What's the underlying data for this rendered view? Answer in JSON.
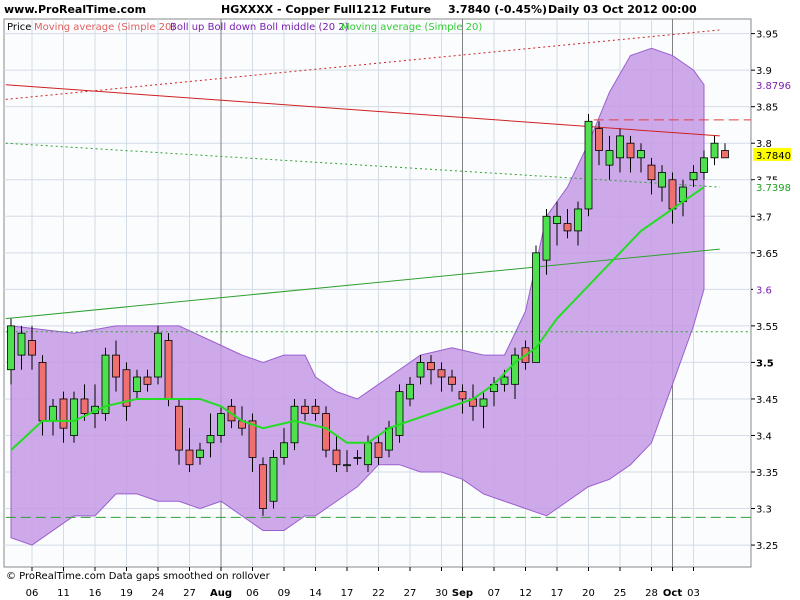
{
  "header": {
    "site": "www.ProRealTime.com",
    "instrument": "HGXXXX - Copper Full1212 Future",
    "quote": "3.7840 (-0.45%)",
    "period": "Daily  03 Oct 2012 00:00"
  },
  "legend": [
    {
      "text": "Price",
      "color": "#000000"
    },
    {
      "text": "Moving average (Simple 20)",
      "color": "#e06060"
    },
    {
      "text": "Boll up Boll down Boll middle (20 2)",
      "color": "#7a1fb0"
    },
    {
      "text": "Moving average (Simple 20)",
      "color": "#33cc33"
    }
  ],
  "footer": "© ProRealTime.com  Data gaps smoothed on rollover",
  "chart_data": {
    "type": "candlestick",
    "ylim": [
      3.22,
      3.97
    ],
    "y_ticks": [
      "3.95",
      "3.9",
      "3.85",
      "3.8",
      "3.75",
      "3.7",
      "3.65",
      "3.6",
      "3.55",
      "3.5",
      "3.45",
      "3.4",
      "3.35",
      "3.3",
      "3.25"
    ],
    "bold_tick": "3.5",
    "price_labels": [
      {
        "value": "3.8796",
        "color": "#7a1fb0",
        "bg": "#ffffff",
        "y": 3.8796
      },
      {
        "value": "3.7840",
        "color": "#000000",
        "bg": "#ffff00",
        "y": 3.784
      },
      {
        "value": "3.7398",
        "color": "#20a020",
        "bg": "#ffffff",
        "y": 3.7398
      },
      {
        "value": "3.6",
        "color": "#7a1fb0",
        "bg": "#ffffff",
        "y": 3.6
      }
    ],
    "x_labels": [
      {
        "label": "06",
        "i": 2,
        "bold": false
      },
      {
        "label": "11",
        "i": 5,
        "bold": false
      },
      {
        "label": "16",
        "i": 8,
        "bold": false
      },
      {
        "label": "19",
        "i": 11,
        "bold": false
      },
      {
        "label": "24",
        "i": 14,
        "bold": false
      },
      {
        "label": "27",
        "i": 17,
        "bold": false
      },
      {
        "label": "Aug",
        "i": 20,
        "bold": true
      },
      {
        "label": "06",
        "i": 23,
        "bold": false
      },
      {
        "label": "09",
        "i": 26,
        "bold": false
      },
      {
        "label": "14",
        "i": 29,
        "bold": false
      },
      {
        "label": "17",
        "i": 32,
        "bold": false
      },
      {
        "label": "22",
        "i": 35,
        "bold": false
      },
      {
        "label": "27",
        "i": 38,
        "bold": false
      },
      {
        "label": "30",
        "i": 41,
        "bold": false
      },
      {
        "label": "Sep",
        "i": 43,
        "bold": true
      },
      {
        "label": "07",
        "i": 46,
        "bold": false
      },
      {
        "label": "12",
        "i": 49,
        "bold": false
      },
      {
        "label": "17",
        "i": 52,
        "bold": false
      },
      {
        "label": "20",
        "i": 55,
        "bold": false
      },
      {
        "label": "25",
        "i": 58,
        "bold": false
      },
      {
        "label": "28",
        "i": 61,
        "bold": false
      },
      {
        "label": "Oct",
        "i": 63,
        "bold": true
      },
      {
        "label": "03",
        "i": 65,
        "bold": false
      }
    ],
    "candles": [
      {
        "o": 3.49,
        "h": 3.56,
        "l": 3.47,
        "c": 3.55
      },
      {
        "o": 3.51,
        "h": 3.55,
        "l": 3.49,
        "c": 3.54
      },
      {
        "o": 3.53,
        "h": 3.55,
        "l": 3.49,
        "c": 3.51
      },
      {
        "o": 3.5,
        "h": 3.51,
        "l": 3.4,
        "c": 3.42
      },
      {
        "o": 3.42,
        "h": 3.45,
        "l": 3.4,
        "c": 3.44
      },
      {
        "o": 3.45,
        "h": 3.46,
        "l": 3.39,
        "c": 3.41
      },
      {
        "o": 3.4,
        "h": 3.46,
        "l": 3.39,
        "c": 3.45
      },
      {
        "o": 3.45,
        "h": 3.47,
        "l": 3.42,
        "c": 3.43
      },
      {
        "o": 3.43,
        "h": 3.47,
        "l": 3.41,
        "c": 3.44
      },
      {
        "o": 3.43,
        "h": 3.52,
        "l": 3.42,
        "c": 3.51
      },
      {
        "o": 3.51,
        "h": 3.53,
        "l": 3.46,
        "c": 3.48
      },
      {
        "o": 3.49,
        "h": 3.5,
        "l": 3.42,
        "c": 3.44
      },
      {
        "o": 3.46,
        "h": 3.49,
        "l": 3.45,
        "c": 3.48
      },
      {
        "o": 3.48,
        "h": 3.49,
        "l": 3.46,
        "c": 3.47
      },
      {
        "o": 3.48,
        "h": 3.55,
        "l": 3.47,
        "c": 3.54
      },
      {
        "o": 3.53,
        "h": 3.54,
        "l": 3.44,
        "c": 3.45
      },
      {
        "o": 3.44,
        "h": 3.45,
        "l": 3.36,
        "c": 3.38
      },
      {
        "o": 3.38,
        "h": 3.41,
        "l": 3.35,
        "c": 3.36
      },
      {
        "o": 3.37,
        "h": 3.39,
        "l": 3.36,
        "c": 3.38
      },
      {
        "o": 3.39,
        "h": 3.43,
        "l": 3.37,
        "c": 3.4
      },
      {
        "o": 3.4,
        "h": 3.44,
        "l": 3.39,
        "c": 3.43
      },
      {
        "o": 3.44,
        "h": 3.45,
        "l": 3.41,
        "c": 3.42
      },
      {
        "o": 3.42,
        "h": 3.44,
        "l": 3.4,
        "c": 3.41
      },
      {
        "o": 3.42,
        "h": 3.43,
        "l": 3.35,
        "c": 3.37
      },
      {
        "o": 3.36,
        "h": 3.37,
        "l": 3.29,
        "c": 3.3
      },
      {
        "o": 3.31,
        "h": 3.38,
        "l": 3.3,
        "c": 3.37
      },
      {
        "o": 3.37,
        "h": 3.41,
        "l": 3.36,
        "c": 3.39
      },
      {
        "o": 3.39,
        "h": 3.45,
        "l": 3.38,
        "c": 3.44
      },
      {
        "o": 3.44,
        "h": 3.45,
        "l": 3.42,
        "c": 3.43
      },
      {
        "o": 3.44,
        "h": 3.45,
        "l": 3.42,
        "c": 3.43
      },
      {
        "o": 3.43,
        "h": 3.44,
        "l": 3.37,
        "c": 3.38
      },
      {
        "o": 3.38,
        "h": 3.4,
        "l": 3.35,
        "c": 3.36
      },
      {
        "o": 3.36,
        "h": 3.38,
        "l": 3.35,
        "c": 3.36
      },
      {
        "o": 3.37,
        "h": 3.38,
        "l": 3.36,
        "c": 3.37
      },
      {
        "o": 3.36,
        "h": 3.4,
        "l": 3.35,
        "c": 3.39
      },
      {
        "o": 3.39,
        "h": 3.4,
        "l": 3.36,
        "c": 3.37
      },
      {
        "o": 3.38,
        "h": 3.42,
        "l": 3.37,
        "c": 3.41
      },
      {
        "o": 3.4,
        "h": 3.47,
        "l": 3.39,
        "c": 3.46
      },
      {
        "o": 3.45,
        "h": 3.48,
        "l": 3.44,
        "c": 3.47
      },
      {
        "o": 3.48,
        "h": 3.51,
        "l": 3.47,
        "c": 3.5
      },
      {
        "o": 3.5,
        "h": 3.51,
        "l": 3.47,
        "c": 3.49
      },
      {
        "o": 3.49,
        "h": 3.5,
        "l": 3.46,
        "c": 3.48
      },
      {
        "o": 3.48,
        "h": 3.49,
        "l": 3.46,
        "c": 3.47
      },
      {
        "o": 3.46,
        "h": 3.47,
        "l": 3.43,
        "c": 3.45
      },
      {
        "o": 3.45,
        "h": 3.47,
        "l": 3.42,
        "c": 3.44
      },
      {
        "o": 3.44,
        "h": 3.46,
        "l": 3.41,
        "c": 3.45
      },
      {
        "o": 3.46,
        "h": 3.48,
        "l": 3.44,
        "c": 3.47
      },
      {
        "o": 3.47,
        "h": 3.49,
        "l": 3.46,
        "c": 3.48
      },
      {
        "o": 3.47,
        "h": 3.52,
        "l": 3.45,
        "c": 3.51
      },
      {
        "o": 3.52,
        "h": 3.53,
        "l": 3.49,
        "c": 3.5
      },
      {
        "o": 3.5,
        "h": 3.66,
        "l": 3.5,
        "c": 3.65
      },
      {
        "o": 3.64,
        "h": 3.71,
        "l": 3.62,
        "c": 3.7
      },
      {
        "o": 3.69,
        "h": 3.72,
        "l": 3.66,
        "c": 3.7
      },
      {
        "o": 3.69,
        "h": 3.71,
        "l": 3.67,
        "c": 3.68
      },
      {
        "o": 3.68,
        "h": 3.72,
        "l": 3.66,
        "c": 3.71
      },
      {
        "o": 3.71,
        "h": 3.84,
        "l": 3.7,
        "c": 3.83
      },
      {
        "o": 3.82,
        "h": 3.83,
        "l": 3.77,
        "c": 3.79
      },
      {
        "o": 3.77,
        "h": 3.81,
        "l": 3.75,
        "c": 3.79
      },
      {
        "o": 3.78,
        "h": 3.82,
        "l": 3.76,
        "c": 3.81
      },
      {
        "o": 3.8,
        "h": 3.81,
        "l": 3.76,
        "c": 3.78
      },
      {
        "o": 3.78,
        "h": 3.8,
        "l": 3.76,
        "c": 3.79
      },
      {
        "o": 3.77,
        "h": 3.78,
        "l": 3.73,
        "c": 3.75
      },
      {
        "o": 3.74,
        "h": 3.77,
        "l": 3.72,
        "c": 3.76
      },
      {
        "o": 3.75,
        "h": 3.76,
        "l": 3.69,
        "c": 3.71
      },
      {
        "o": 3.72,
        "h": 3.75,
        "l": 3.7,
        "c": 3.74
      },
      {
        "o": 3.75,
        "h": 3.77,
        "l": 3.74,
        "c": 3.76
      },
      {
        "o": 3.76,
        "h": 3.79,
        "l": 3.75,
        "c": 3.78
      },
      {
        "o": 3.78,
        "h": 3.81,
        "l": 3.77,
        "c": 3.8
      },
      {
        "o": 3.79,
        "h": 3.8,
        "l": 3.78,
        "c": 3.78
      }
    ],
    "boll_upper": [
      [
        0,
        3.55
      ],
      [
        6,
        3.54
      ],
      [
        10,
        3.55
      ],
      [
        12,
        3.55
      ],
      [
        16,
        3.55
      ],
      [
        19,
        3.53
      ],
      [
        22,
        3.51
      ],
      [
        24,
        3.5
      ],
      [
        26,
        3.51
      ],
      [
        28,
        3.51
      ],
      [
        29,
        3.48
      ],
      [
        31,
        3.46
      ],
      [
        33,
        3.45
      ],
      [
        35,
        3.47
      ],
      [
        39,
        3.51
      ],
      [
        42,
        3.52
      ],
      [
        45,
        3.51
      ],
      [
        47,
        3.51
      ],
      [
        49,
        3.57
      ],
      [
        51,
        3.7
      ],
      [
        53,
        3.74
      ],
      [
        55,
        3.8
      ],
      [
        57,
        3.87
      ],
      [
        59,
        3.92
      ],
      [
        61,
        3.93
      ],
      [
        63,
        3.92
      ],
      [
        65,
        3.9
      ],
      [
        66,
        3.88
      ]
    ],
    "boll_lower": [
      [
        0,
        3.26
      ],
      [
        2,
        3.25
      ],
      [
        4,
        3.27
      ],
      [
        6,
        3.29
      ],
      [
        8,
        3.29
      ],
      [
        10,
        3.32
      ],
      [
        12,
        3.32
      ],
      [
        14,
        3.31
      ],
      [
        16,
        3.31
      ],
      [
        18,
        3.3
      ],
      [
        20,
        3.31
      ],
      [
        22,
        3.29
      ],
      [
        24,
        3.27
      ],
      [
        26,
        3.27
      ],
      [
        28,
        3.29
      ],
      [
        29,
        3.29
      ],
      [
        31,
        3.31
      ],
      [
        33,
        3.33
      ],
      [
        35,
        3.36
      ],
      [
        37,
        3.36
      ],
      [
        39,
        3.35
      ],
      [
        41,
        3.35
      ],
      [
        43,
        3.34
      ],
      [
        45,
        3.32
      ],
      [
        47,
        3.31
      ],
      [
        49,
        3.3
      ],
      [
        51,
        3.29
      ],
      [
        53,
        3.31
      ],
      [
        55,
        3.33
      ],
      [
        57,
        3.34
      ],
      [
        59,
        3.36
      ],
      [
        61,
        3.39
      ],
      [
        63,
        3.47
      ],
      [
        65,
        3.55
      ],
      [
        66,
        3.6
      ]
    ],
    "ma20": [
      [
        0,
        3.38
      ],
      [
        3,
        3.42
      ],
      [
        6,
        3.42
      ],
      [
        9,
        3.44
      ],
      [
        12,
        3.45
      ],
      [
        15,
        3.45
      ],
      [
        18,
        3.45
      ],
      [
        20,
        3.44
      ],
      [
        22,
        3.42
      ],
      [
        24,
        3.41
      ],
      [
        27,
        3.42
      ],
      [
        30,
        3.41
      ],
      [
        32,
        3.39
      ],
      [
        34,
        3.39
      ],
      [
        36,
        3.41
      ],
      [
        38,
        3.42
      ],
      [
        40,
        3.43
      ],
      [
        42,
        3.44
      ],
      [
        44,
        3.45
      ],
      [
        46,
        3.47
      ],
      [
        48,
        3.5
      ],
      [
        50,
        3.52
      ],
      [
        52,
        3.56
      ],
      [
        54,
        3.59
      ],
      [
        56,
        3.62
      ],
      [
        58,
        3.65
      ],
      [
        60,
        3.68
      ],
      [
        62,
        3.7
      ],
      [
        64,
        3.72
      ],
      [
        66,
        3.74
      ]
    ],
    "red_trend": [
      [
        -0.5,
        3.88
      ],
      [
        67.5,
        3.81
      ]
    ],
    "green_trend": [
      [
        -0.5,
        3.56
      ],
      [
        67.5,
        3.655
      ]
    ],
    "red_dotted": [
      [
        -0.5,
        3.86
      ],
      [
        67.5,
        3.955
      ]
    ],
    "green_dotted": [
      [
        -0.5,
        3.8
      ],
      [
        67.5,
        3.74
      ]
    ],
    "h_lines": [
      {
        "y": 3.832,
        "color": "#e04040",
        "x0": 55.5,
        "dash": "10,5"
      },
      {
        "y": 3.542,
        "color": "#30a030",
        "x0": -0.5,
        "dash": "2,3"
      },
      {
        "y": 3.288,
        "color": "#30a030",
        "x0": -0.5,
        "dash": "10,5"
      }
    ],
    "v_lines": [
      20,
      43,
      63
    ]
  }
}
